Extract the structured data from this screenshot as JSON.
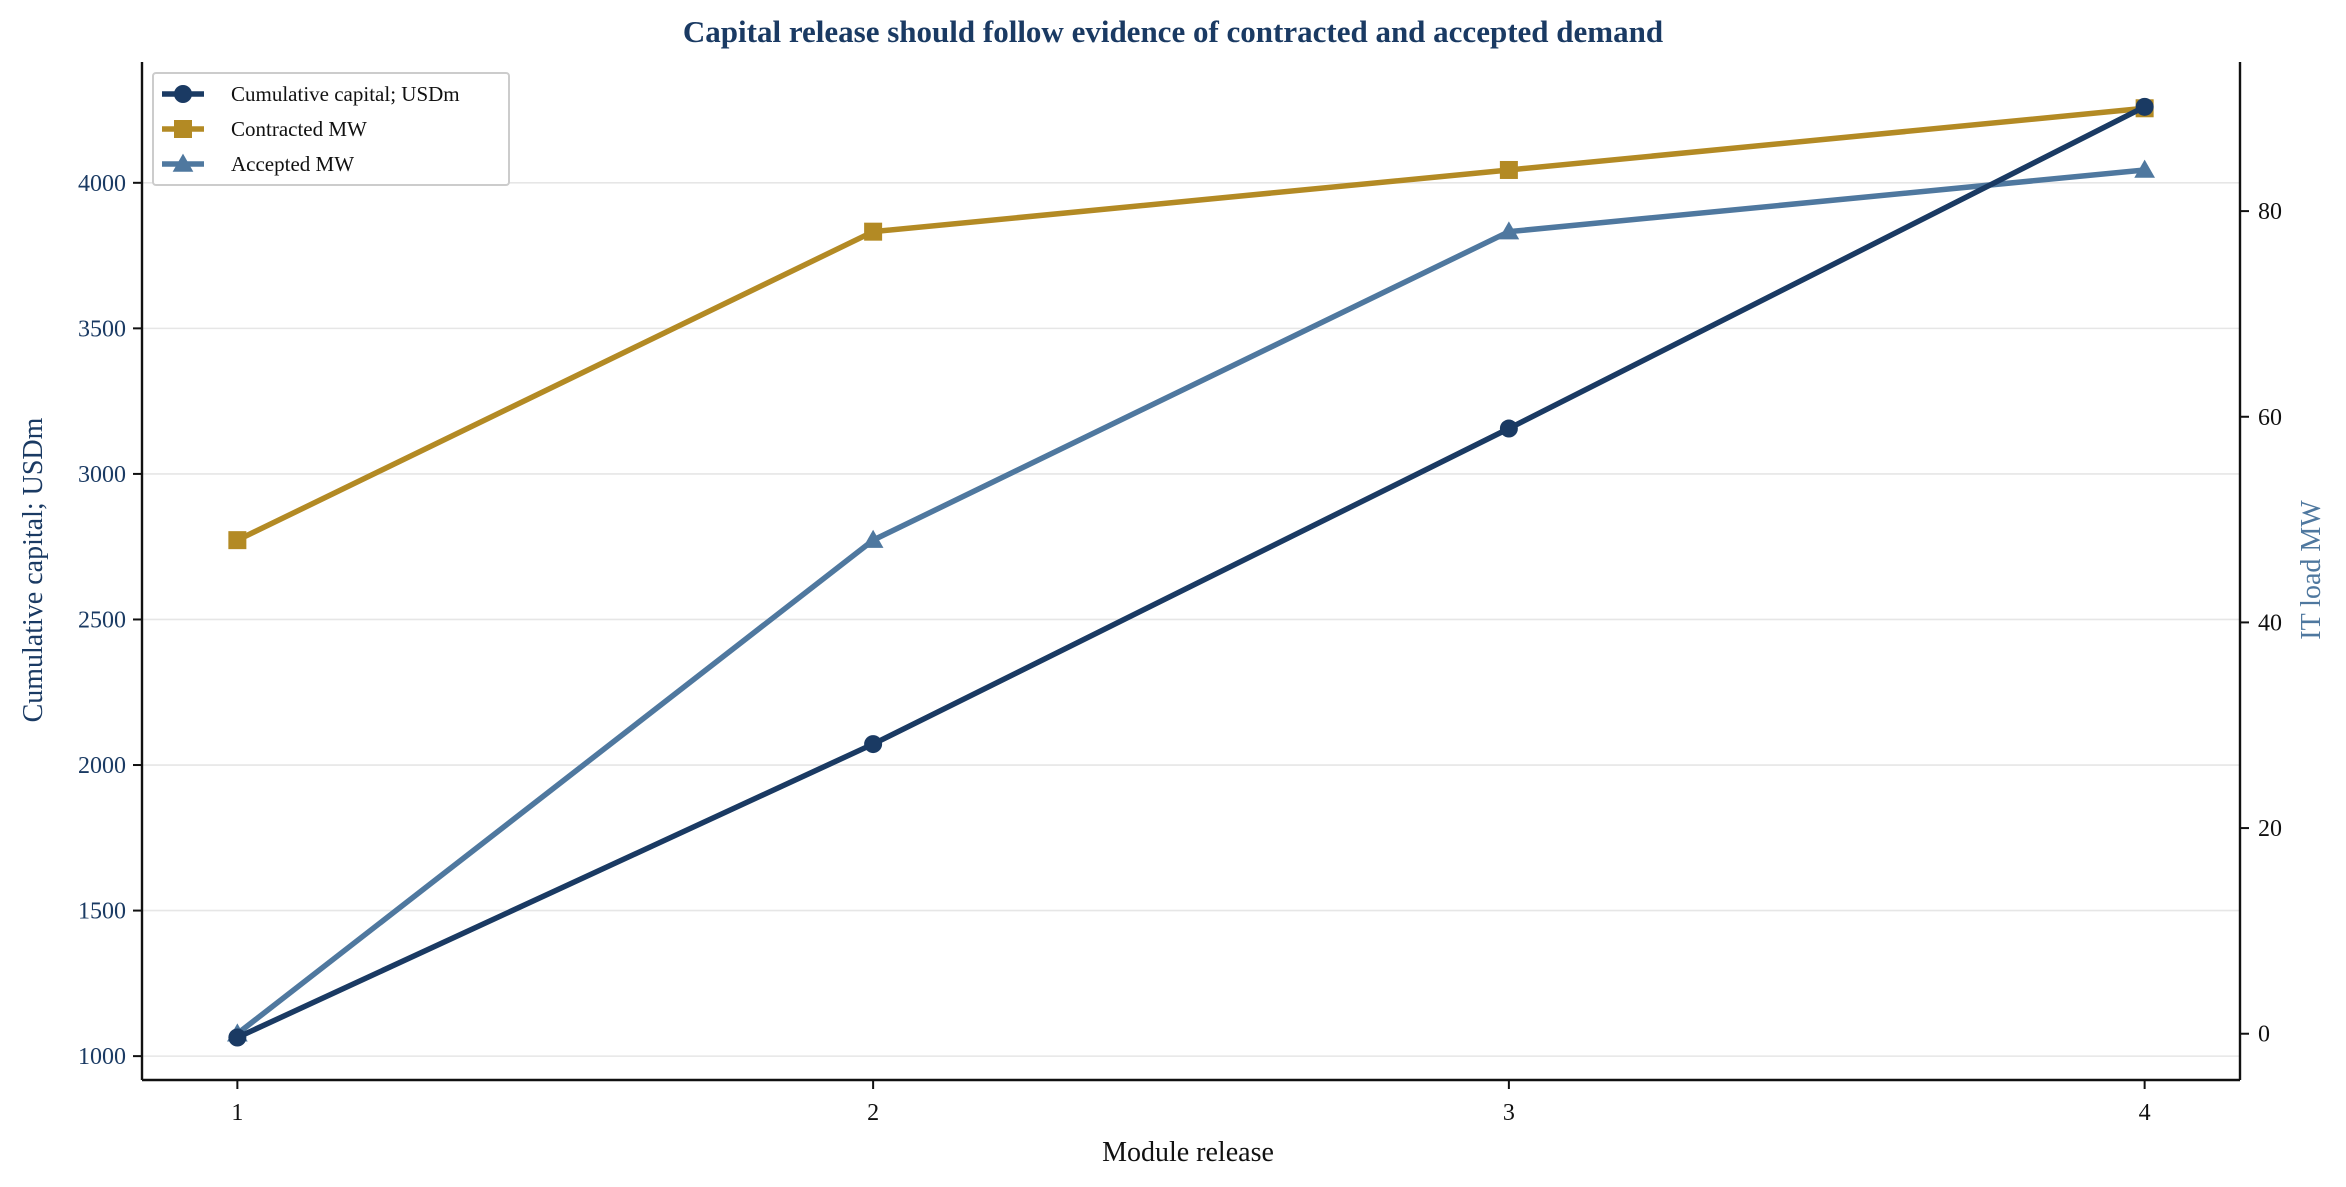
{
  "chart_data": {
    "type": "line",
    "title": "Capital release should follow evidence of contracted and accepted demand",
    "xlabel": "Module release",
    "ylabel_left": "Cumulative capital; USDm",
    "ylabel_right": "IT load MW",
    "x": [
      1,
      2,
      3,
      4
    ],
    "x_ticks": [
      "1",
      "2",
      "3",
      "4"
    ],
    "xlim": [
      0.85,
      4.15
    ],
    "ylim_left": [
      918,
      4415
    ],
    "yticks_left": [
      1000,
      1500,
      2000,
      2500,
      3000,
      3500,
      4000
    ],
    "ylim_right": [
      -4.5,
      94.5
    ],
    "yticks_right": [
      0,
      20,
      40,
      60,
      80
    ],
    "grid": "horizontal",
    "legend_position": "top-left",
    "series": [
      {
        "name": "Cumulative capital; USDm",
        "axis": "left",
        "marker": "circle",
        "color": "#1a3a63",
        "values": [
          1064,
          2072,
          3156,
          4261
        ]
      },
      {
        "name": "Contracted MW",
        "axis": "right",
        "marker": "square",
        "color": "#b38a24",
        "values": [
          48,
          78,
          84,
          90
        ]
      },
      {
        "name": "Accepted MW",
        "axis": "right",
        "marker": "triangle",
        "color": "#4f789f",
        "values": [
          0,
          48,
          78,
          84
        ]
      }
    ]
  }
}
